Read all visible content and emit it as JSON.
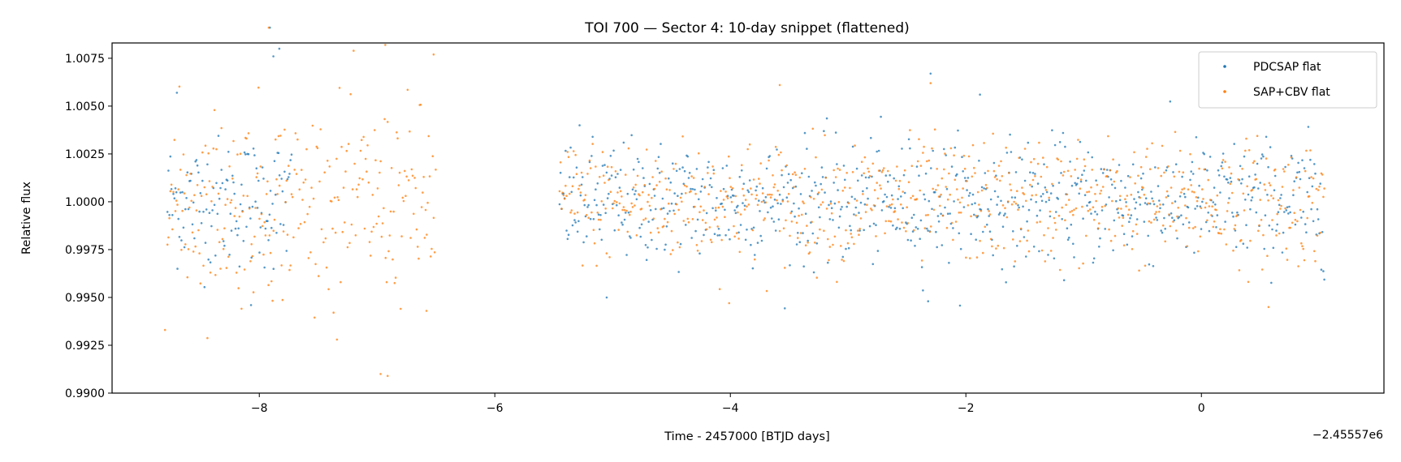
{
  "chart_data": {
    "type": "scatter",
    "title": "TOI 700 — Sector 4: 10-day snippet (flattened)",
    "xlabel": "Time - 2457000 [BTJD days]",
    "ylabel": "Relative flux",
    "x_offset_label": "−2.45557e6",
    "xlim": [
      -9.25,
      1.55
    ],
    "ylim": [
      0.99,
      1.0083
    ],
    "x_ticks": [
      -8,
      -6,
      -4,
      -2,
      0
    ],
    "x_tick_labels": [
      "−8",
      "−6",
      "−4",
      "−2",
      "0"
    ],
    "y_ticks": [
      0.99,
      0.9925,
      0.995,
      0.9975,
      1.0,
      1.0025,
      1.005,
      1.0075
    ],
    "y_tick_labels": [
      "0.9900",
      "0.9925",
      "0.9950",
      "0.9975",
      "1.0000",
      "1.0025",
      "1.0050",
      "1.0075"
    ],
    "legend_position": "upper right",
    "series": [
      {
        "name": "PDCSAP flat",
        "color": "#1f77b4",
        "segments": [
          {
            "x_start": -8.78,
            "x_end": -7.72,
            "scatter": 0.0017
          },
          {
            "x_start": -5.45,
            "x_end": 1.05,
            "scatter": 0.0016
          }
        ],
        "notable_points": [
          {
            "x": -8.7,
            "y": 1.0057
          },
          {
            "x": -7.91,
            "y": 1.0091
          },
          {
            "x": -7.88,
            "y": 1.0076
          },
          {
            "x": -7.83,
            "y": 1.008
          },
          {
            "x": -8.07,
            "y": 0.9946
          },
          {
            "x": -2.3,
            "y": 1.0067
          },
          {
            "x": -1.88,
            "y": 1.0056
          },
          {
            "x": -2.32,
            "y": 0.9948
          },
          {
            "x": -5.05,
            "y": 0.995
          }
        ]
      },
      {
        "name": "SAP+CBV flat",
        "color": "#ff7f0e",
        "segments": [
          {
            "x_start": -8.78,
            "x_end": -6.5,
            "scatter": 0.0025
          },
          {
            "x_start": -5.45,
            "x_end": 1.05,
            "scatter": 0.0016
          }
        ],
        "notable_points": [
          {
            "x": -7.92,
            "y": 1.0091
          },
          {
            "x": -6.93,
            "y": 1.0082
          },
          {
            "x": -6.52,
            "y": 1.0077
          },
          {
            "x": -6.97,
            "y": 0.991
          },
          {
            "x": -6.91,
            "y": 0.9909
          },
          {
            "x": -7.34,
            "y": 0.9928
          },
          {
            "x": -8.8,
            "y": 0.9933
          },
          {
            "x": -6.58,
            "y": 0.9943
          },
          {
            "x": -3.58,
            "y": 1.0061
          },
          {
            "x": -2.3,
            "y": 1.0062
          },
          {
            "x": -4.01,
            "y": 0.9947
          },
          {
            "x": 0.57,
            "y": 0.9945
          }
        ]
      }
    ]
  }
}
